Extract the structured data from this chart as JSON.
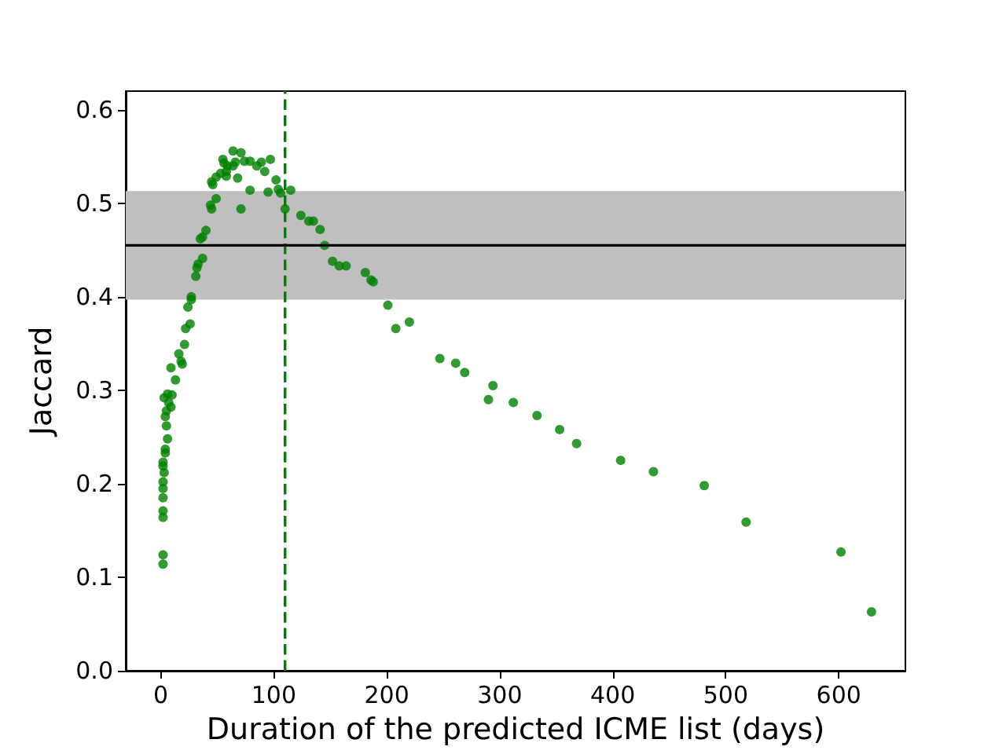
{
  "chart_data": {
    "type": "scatter",
    "xlabel": "Duration of the predicted ICME list (days)",
    "ylabel": "Jaccard",
    "x": [
      2,
      2,
      2,
      2,
      2,
      2,
      2,
      3,
      2,
      2,
      4,
      4,
      6,
      5,
      4,
      5,
      9,
      7,
      3,
      10,
      6,
      13,
      9,
      19,
      18,
      16,
      21,
      22,
      26,
      24,
      27,
      27,
      31,
      32,
      33,
      37,
      35,
      37,
      40,
      44,
      45,
      49,
      45,
      46,
      49,
      53,
      58,
      58,
      55,
      56,
      59,
      64,
      71,
      66,
      64,
      74,
      79,
      68,
      89,
      85,
      92,
      97,
      102,
      79,
      71,
      95,
      104,
      106,
      115,
      110,
      124,
      131,
      135,
      141,
      145,
      152,
      158,
      164,
      181,
      186,
      188,
      201,
      208,
      220,
      247,
      261,
      269,
      294,
      290,
      312,
      333,
      353,
      368,
      407,
      436,
      481,
      518,
      602,
      629
    ],
    "values": [
      0.114,
      0.124,
      0.164,
      0.171,
      0.185,
      0.195,
      0.202,
      0.212,
      0.219,
      0.223,
      0.233,
      0.237,
      0.248,
      0.262,
      0.272,
      0.278,
      0.282,
      0.287,
      0.292,
      0.295,
      0.296,
      0.311,
      0.324,
      0.328,
      0.331,
      0.339,
      0.349,
      0.366,
      0.371,
      0.389,
      0.397,
      0.4,
      0.422,
      0.431,
      0.435,
      0.441,
      0.462,
      0.464,
      0.471,
      0.498,
      0.494,
      0.505,
      0.523,
      0.52,
      0.528,
      0.532,
      0.534,
      0.529,
      0.547,
      0.543,
      0.54,
      0.556,
      0.554,
      0.544,
      0.54,
      0.545,
      0.545,
      0.527,
      0.544,
      0.54,
      0.534,
      0.547,
      0.525,
      0.514,
      0.494,
      0.512,
      0.515,
      0.511,
      0.514,
      0.494,
      0.487,
      0.481,
      0.481,
      0.472,
      0.455,
      0.438,
      0.433,
      0.433,
      0.426,
      0.418,
      0.416,
      0.391,
      0.366,
      0.373,
      0.334,
      0.329,
      0.319,
      0.305,
      0.29,
      0.287,
      0.273,
      0.258,
      0.243,
      0.225,
      0.213,
      0.198,
      0.159,
      0.127,
      0.063
    ],
    "color": "#008000",
    "marker": "circle",
    "xlim": [
      -31,
      659
    ],
    "xticks": [
      0,
      100,
      200,
      300,
      400,
      500,
      600
    ],
    "ylim": [
      0,
      0.62
    ],
    "yticks": [
      {
        "value": 0,
        "label": "0.0"
      },
      {
        "value": 0.1,
        "label": "0.1"
      },
      {
        "value": 0.2,
        "label": "0.2"
      },
      {
        "value": 0.3,
        "label": "0.3"
      },
      {
        "value": 0.4,
        "label": "0.4"
      },
      {
        "value": 0.5,
        "label": "0.5"
      },
      {
        "value": 0.6,
        "label": "0.6"
      }
    ],
    "ref_lines": [
      {
        "axis": "x",
        "value": 110,
        "color": "#008000",
        "line_style": "dashed"
      },
      {
        "axis": "y",
        "value": 0.455,
        "color": "#000000",
        "line_style": "solid"
      }
    ],
    "bands": [
      {
        "axis": "y",
        "from": 0.397,
        "to": 0.513,
        "color": "#bfbfbf"
      }
    ],
    "grid": false
  }
}
